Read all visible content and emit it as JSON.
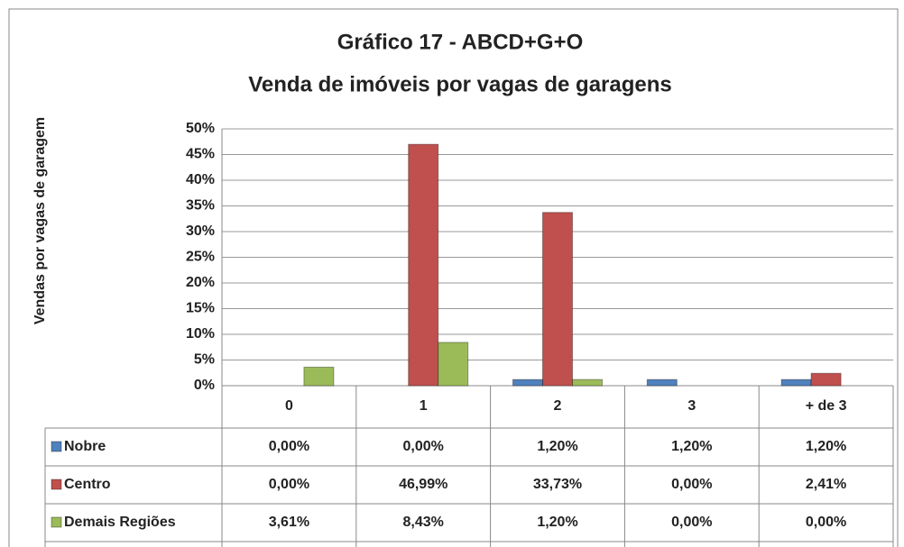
{
  "chart_data": {
    "type": "bar",
    "title": "Gráfico 17 - ABCD+G+O",
    "subtitle": "Venda de imóveis por vagas de garagens",
    "y_label": "Vendas por vagas de garagem",
    "categories": [
      "0",
      "1",
      "2",
      "3",
      "+ de 3"
    ],
    "series": [
      {
        "name": "Nobre",
        "color": "#4f81bd",
        "values": [
          0,
          0,
          1.2,
          1.2,
          1.2
        ],
        "value_labels": [
          "0,00%",
          "0,00%",
          "1,20%",
          "1,20%",
          "1,20%"
        ]
      },
      {
        "name": "Centro",
        "color": "#c0504d",
        "values": [
          0,
          46.99,
          33.73,
          0,
          2.41
        ],
        "value_labels": [
          "0,00%",
          "46,99%",
          "33,73%",
          "0,00%",
          "2,41%"
        ]
      },
      {
        "name": "Demais Regiões",
        "color": "#9bbb59",
        "values": [
          3.61,
          8.43,
          1.2,
          0,
          0
        ],
        "value_labels": [
          "3,61%",
          "8,43%",
          "1,20%",
          "0,00%",
          "0,00%"
        ]
      }
    ],
    "ylim": [
      0,
      50
    ],
    "yticks": [
      {
        "value": 0,
        "label": "0%"
      },
      {
        "value": 5,
        "label": "5%"
      },
      {
        "value": 10,
        "label": "10%"
      },
      {
        "value": 15,
        "label": "15%"
      },
      {
        "value": 20,
        "label": "20%"
      },
      {
        "value": 25,
        "label": "25%"
      },
      {
        "value": 30,
        "label": "30%"
      },
      {
        "value": 35,
        "label": "35%"
      },
      {
        "value": 40,
        "label": "40%"
      },
      {
        "value": 45,
        "label": "45%"
      },
      {
        "value": 50,
        "label": "50%"
      }
    ],
    "grid": true,
    "data_table": true
  }
}
